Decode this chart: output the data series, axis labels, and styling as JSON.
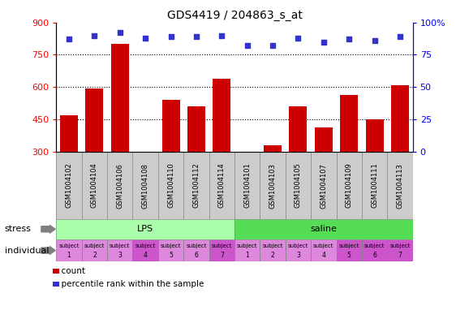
{
  "title": "GDS4419 / 204863_s_at",
  "samples": [
    "GSM1004102",
    "GSM1004104",
    "GSM1004106",
    "GSM1004108",
    "GSM1004110",
    "GSM1004112",
    "GSM1004114",
    "GSM1004101",
    "GSM1004103",
    "GSM1004105",
    "GSM1004107",
    "GSM1004109",
    "GSM1004111",
    "GSM1004113"
  ],
  "counts": [
    470,
    595,
    800,
    302,
    540,
    510,
    640,
    302,
    330,
    510,
    415,
    565,
    450,
    608
  ],
  "percentiles": [
    87,
    90,
    92,
    88,
    89,
    89,
    90,
    82,
    82,
    88,
    85,
    87,
    86,
    89
  ],
  "bar_color": "#cc0000",
  "dot_color": "#3333cc",
  "lps_color": "#aaffaa",
  "saline_color": "#55dd55",
  "ind_color_light": "#dd88dd",
  "ind_color_dark": "#cc55cc",
  "ind_dark_indices": [
    3,
    6,
    11,
    12,
    13
  ],
  "ymin": 300,
  "ymax": 900,
  "yticks": [
    300,
    450,
    600,
    750,
    900
  ],
  "right_yticks": [
    0,
    25,
    50,
    75,
    100
  ],
  "grid_values": [
    450,
    600,
    750
  ],
  "individuals": [
    "subject 1",
    "subject 2",
    "subject 3",
    "subject 4",
    "subject 5",
    "subject 6",
    "subject 7",
    "subject 1",
    "subject 2",
    "subject 3",
    "subject 4",
    "subject 5",
    "subject 6",
    "subject 7"
  ]
}
